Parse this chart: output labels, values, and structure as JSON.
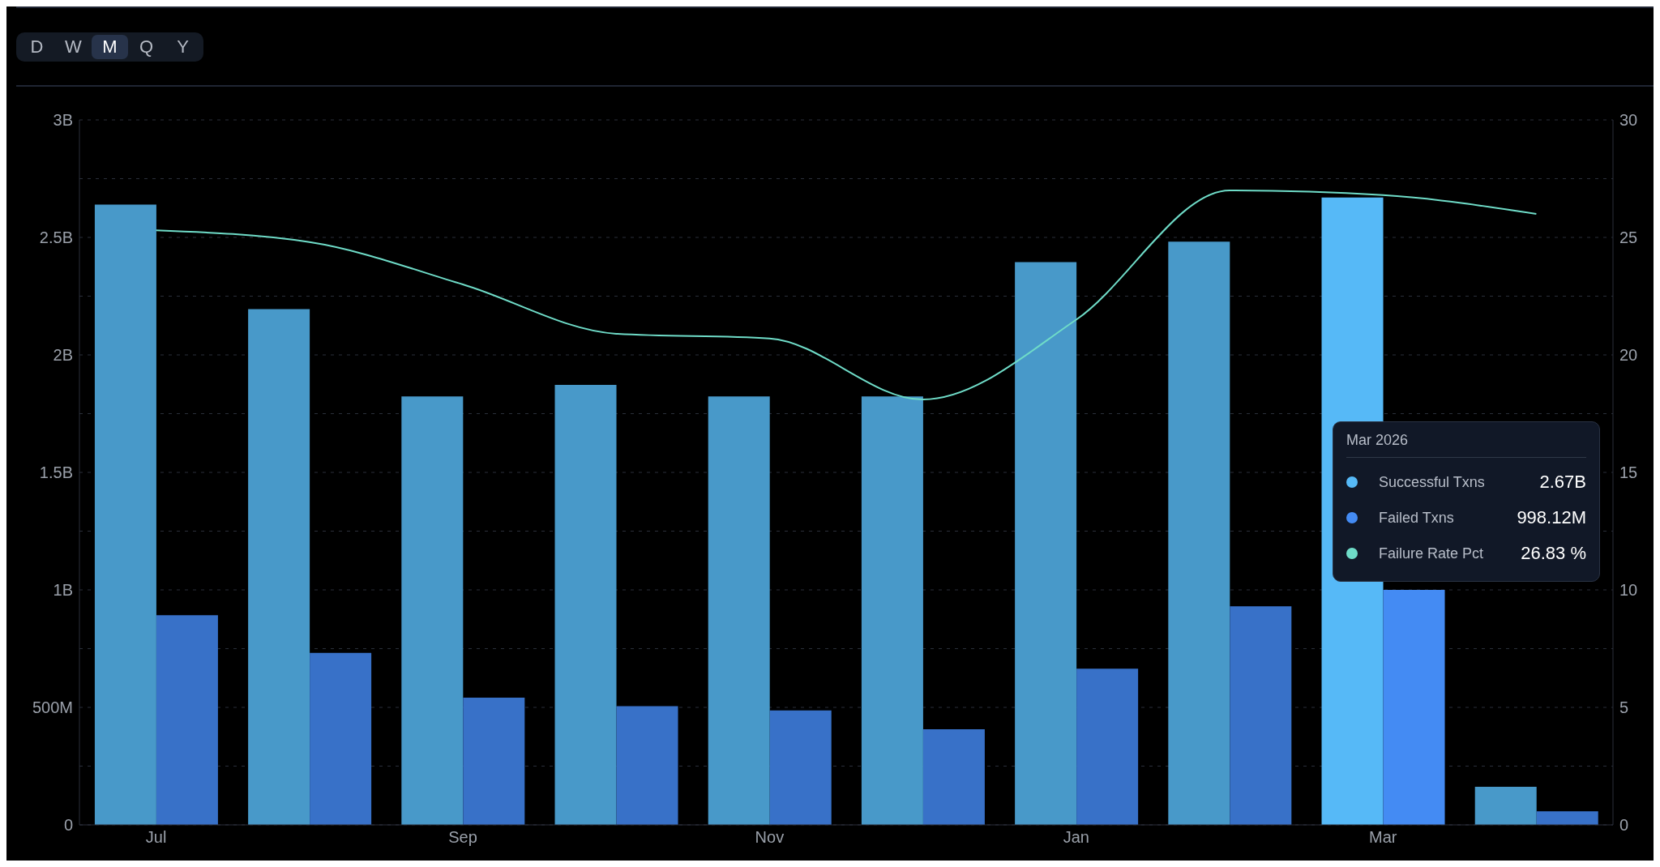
{
  "chart_data": {
    "type": "bar",
    "categories": [
      "Jul",
      null,
      "Sep",
      null,
      "Nov",
      null,
      "Jan",
      null,
      "Mar",
      null
    ],
    "series": [
      {
        "name": "Successful Txns",
        "color": "#4899c9",
        "colors": [
          "#4899c9",
          "#4899c9",
          "#4899c9",
          "#4899c9",
          "#4899c9",
          "#4899c9",
          "#4899c9",
          "#4899c9",
          "#56b9f7",
          "#4899c9"
        ],
        "values": [
          2640000000,
          2195000000,
          1823000000,
          1872000000,
          1823000000,
          1823000000,
          2395000000,
          2482000000,
          2670000000,
          162000000
        ]
      },
      {
        "name": "Failed Txns",
        "color": "#3871c8",
        "colors": [
          "#3871c8",
          "#3871c8",
          "#3871c8",
          "#3871c8",
          "#3871c8",
          "#3871c8",
          "#3871c8",
          "#3871c8",
          "#448bf3",
          "#3871c8"
        ],
        "values": [
          892000000,
          732000000,
          541000000,
          505000000,
          487000000,
          407000000,
          665000000,
          930000000,
          1000000000,
          58000000
        ]
      },
      {
        "name": "Failure Rate Pct",
        "type": "line",
        "axis": "y2",
        "color": "#6fdcc8",
        "values": [
          25.3,
          24.8,
          23.0,
          20.9,
          20.7,
          18.1,
          21.5,
          27.0,
          26.8,
          26.0
        ]
      }
    ],
    "ylim": [
      0,
      3000000000
    ],
    "yticks": [
      0,
      {
        "value": 250000000,
        "label": null
      },
      {
        "value": 500000000,
        "label": "500M"
      },
      {
        "value": 750000000,
        "label": null
      },
      {
        "value": 1000000000,
        "label": "1B"
      },
      {
        "value": 1250000000,
        "label": null
      },
      {
        "value": 1500000000,
        "label": "1.5B"
      },
      {
        "value": 1750000000,
        "label": null
      },
      {
        "value": 2000000000,
        "label": "2B"
      },
      {
        "value": 2250000000,
        "label": null
      },
      {
        "value": 2500000000,
        "label": "2.5B"
      },
      {
        "value": 2750000000,
        "label": null
      },
      {
        "value": 3000000000,
        "label": "3B"
      }
    ],
    "y2lim": [
      0,
      30
    ],
    "y2ticks": [
      0,
      5,
      10,
      15,
      20,
      25,
      30
    ],
    "grid": "y",
    "legend": "right",
    "marker": "none",
    "line_style": "solid",
    "annotations": [
      "D",
      "W",
      "M",
      "Q",
      "Y",
      {
        "text": "Mar 2026",
        "x": "Mar"
      },
      "2.67B",
      "998.12M",
      "26.83 %"
    ]
  }
}
